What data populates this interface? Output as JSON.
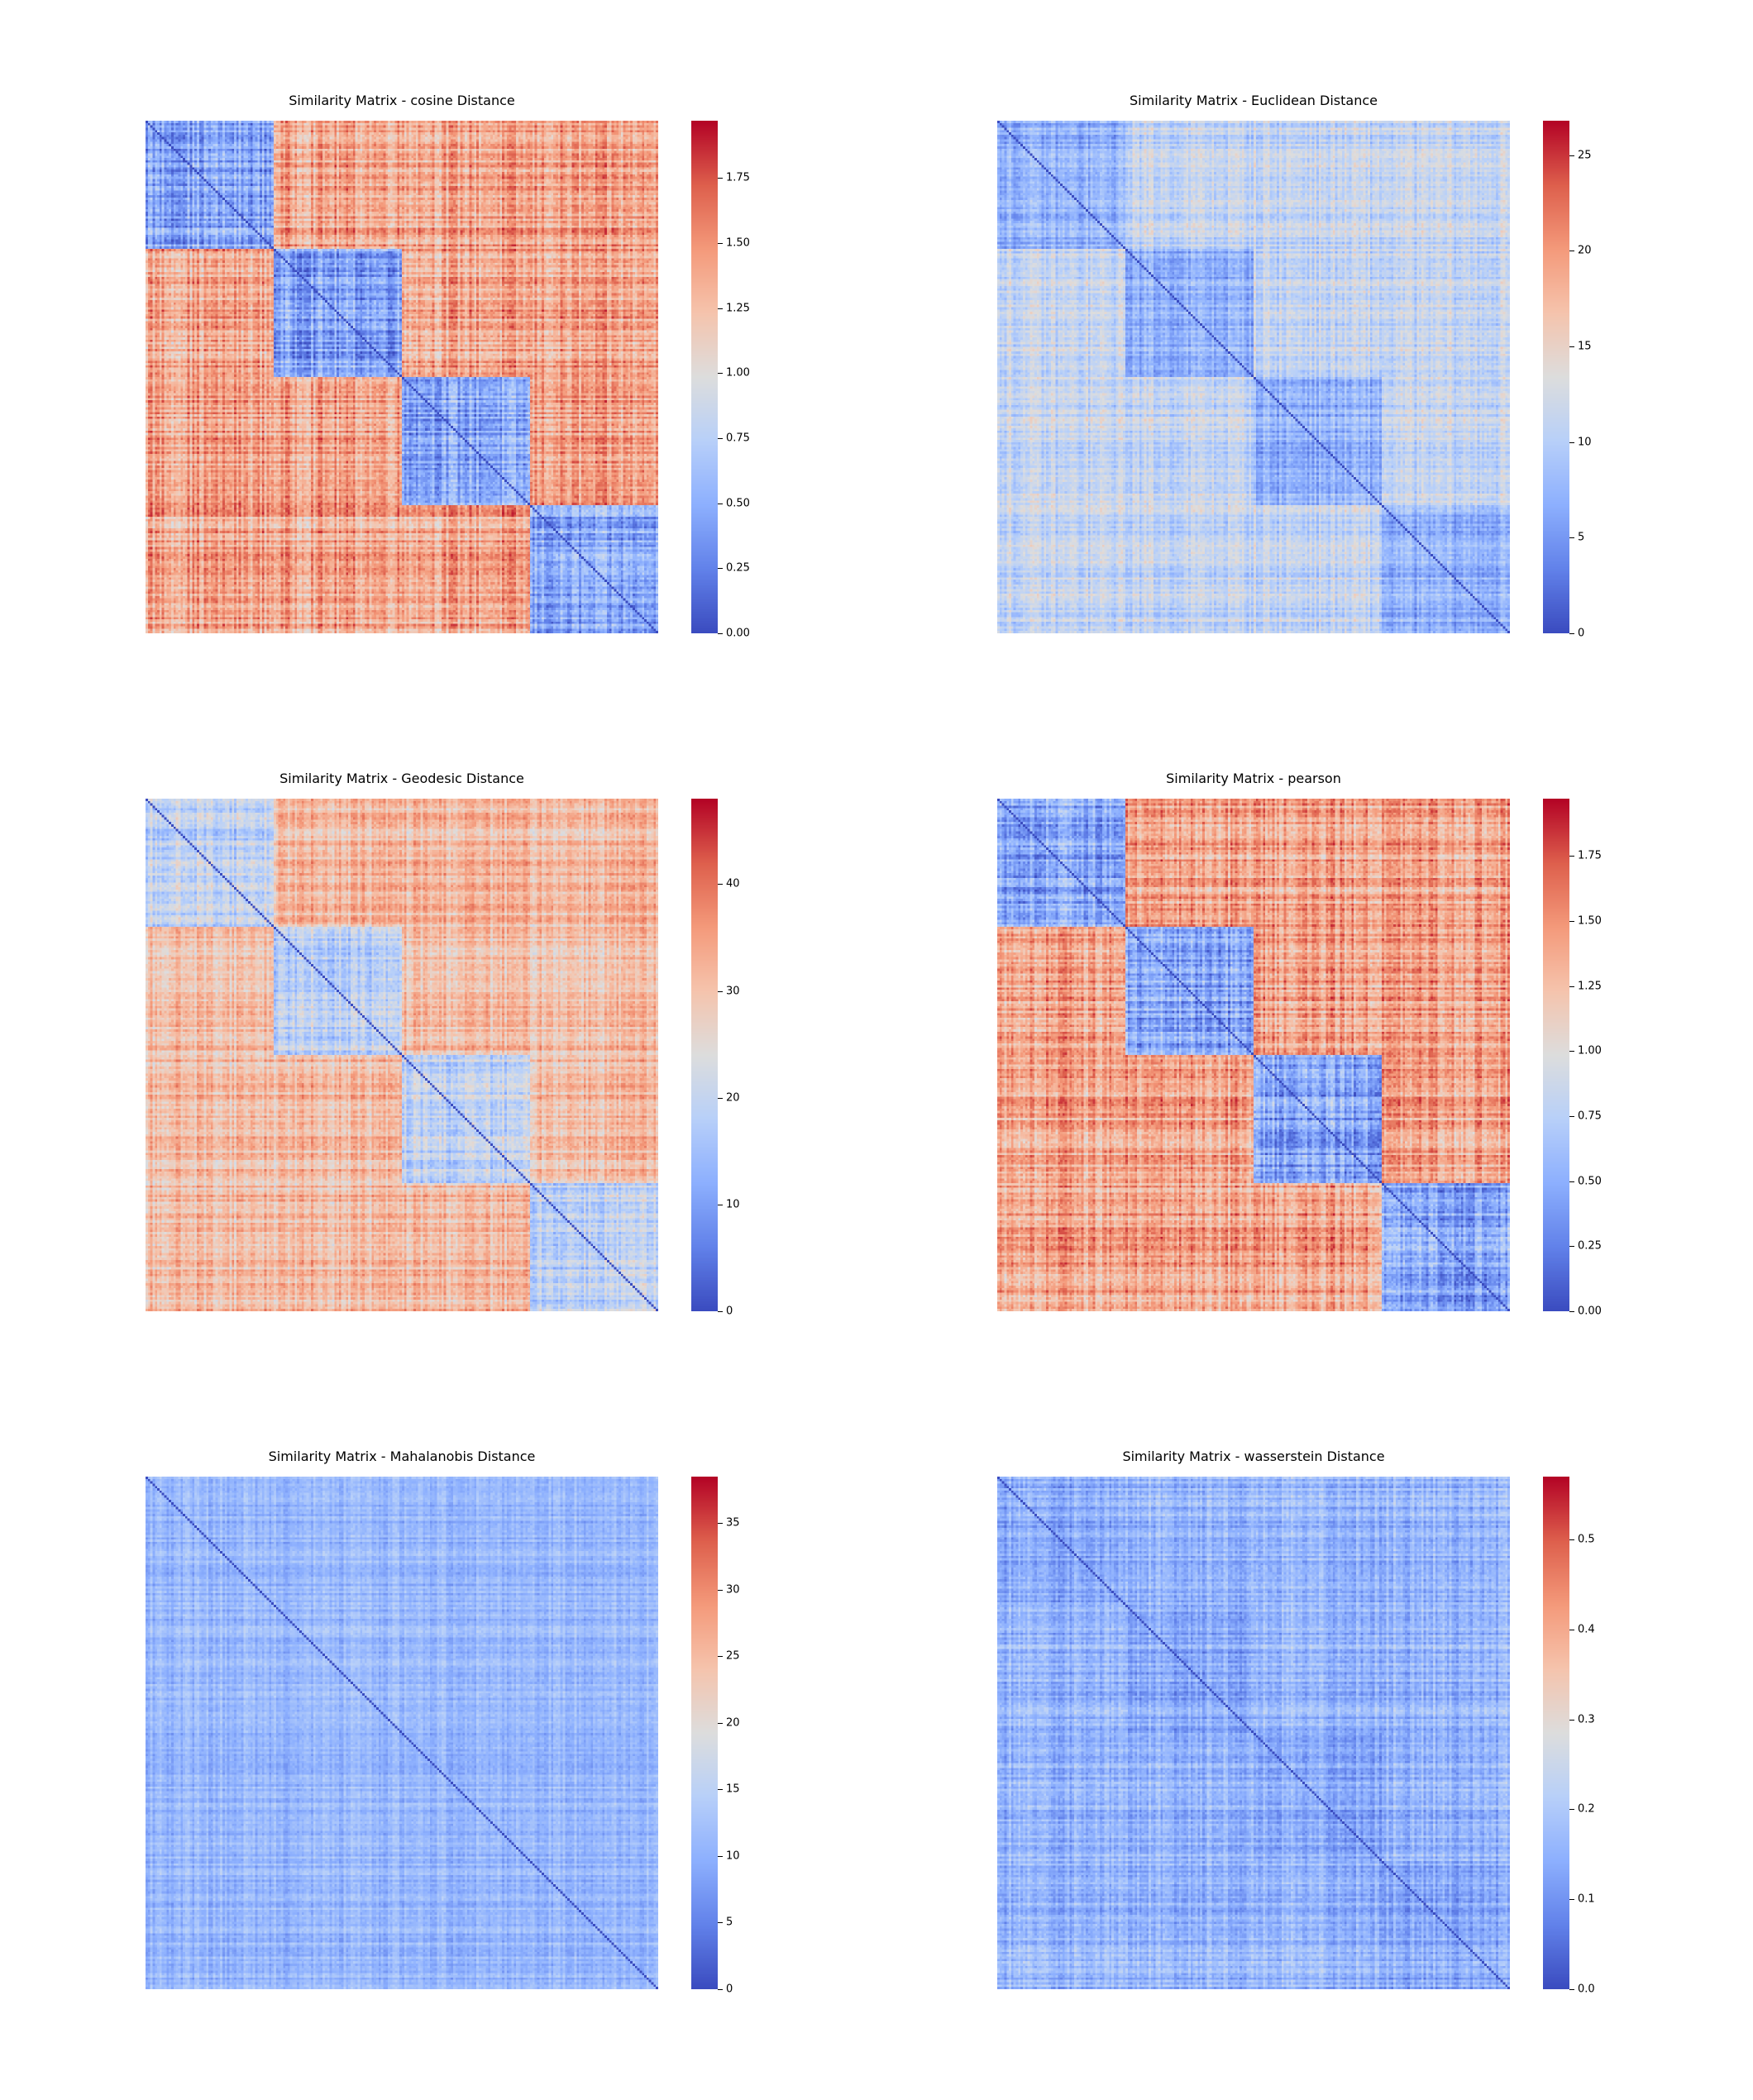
{
  "chart_data": [
    {
      "type": "heatmap",
      "title": "Similarity Matrix - cosine Distance",
      "colormap": "coolwarm",
      "vmin": 0.0,
      "vmax": 1.97,
      "colorbar_ticks": [
        "0.00",
        "0.25",
        "0.50",
        "0.75",
        "1.00",
        "1.25",
        "1.50",
        "1.75"
      ],
      "colorbar_tick_values": [
        0.0,
        0.25,
        0.5,
        0.75,
        1.0,
        1.25,
        1.5,
        1.75
      ],
      "blocks": [
        0.25,
        0.5,
        0.75,
        1.0
      ],
      "within_block_level": 0.45,
      "between_block_level": 1.4,
      "noise": 0.25,
      "xlabel": "",
      "ylabel": ""
    },
    {
      "type": "heatmap",
      "title": "Similarity Matrix - Euclidean Distance",
      "colormap": "coolwarm",
      "vmin": 0,
      "vmax": 26.8,
      "colorbar_ticks": [
        "0",
        "5",
        "10",
        "15",
        "20",
        "25"
      ],
      "colorbar_tick_values": [
        0,
        5,
        10,
        15,
        20,
        25
      ],
      "blocks": [
        0.25,
        0.5,
        0.75,
        1.0
      ],
      "within_block_level": 7,
      "between_block_level": 11,
      "noise": 2.5,
      "xlabel": "",
      "ylabel": ""
    },
    {
      "type": "heatmap",
      "title": "Similarity Matrix - Geodesic Distance",
      "colormap": "coolwarm",
      "vmin": 0,
      "vmax": 48,
      "colorbar_ticks": [
        "0",
        "10",
        "20",
        "30",
        "40"
      ],
      "colorbar_tick_values": [
        0,
        10,
        20,
        30,
        40
      ],
      "blocks": [
        0.25,
        0.5,
        0.75,
        1.0
      ],
      "within_block_level": 19,
      "between_block_level": 31,
      "noise": 5,
      "xlabel": "",
      "ylabel": ""
    },
    {
      "type": "heatmap",
      "title": "Similarity Matrix - pearson",
      "colormap": "coolwarm",
      "vmin": 0.0,
      "vmax": 1.97,
      "colorbar_ticks": [
        "0.00",
        "0.25",
        "0.50",
        "0.75",
        "1.00",
        "1.25",
        "1.50",
        "1.75"
      ],
      "colorbar_tick_values": [
        0.0,
        0.25,
        0.5,
        0.75,
        1.0,
        1.25,
        1.5,
        1.75
      ],
      "blocks": [
        0.25,
        0.5,
        0.75,
        1.0
      ],
      "within_block_level": 0.45,
      "between_block_level": 1.4,
      "noise": 0.25,
      "xlabel": "",
      "ylabel": ""
    },
    {
      "type": "heatmap",
      "title": "Similarity Matrix - Mahalanobis Distance",
      "colormap": "coolwarm",
      "vmin": 0,
      "vmax": 38.5,
      "colorbar_ticks": [
        "0",
        "5",
        "10",
        "15",
        "20",
        "25",
        "30",
        "35"
      ],
      "colorbar_tick_values": [
        0,
        5,
        10,
        15,
        20,
        25,
        30,
        35
      ],
      "blocks": [
        0.25,
        0.5,
        0.75,
        1.0
      ],
      "within_block_level": 11,
      "between_block_level": 11,
      "noise": 2.5,
      "xlabel": "",
      "ylabel": ""
    },
    {
      "type": "heatmap",
      "title": "Similarity Matrix - wasserstein Distance",
      "colormap": "coolwarm",
      "vmin": 0.0,
      "vmax": 0.57,
      "colorbar_ticks": [
        "0.0",
        "0.1",
        "0.2",
        "0.3",
        "0.4",
        "0.5"
      ],
      "colorbar_tick_values": [
        0.0,
        0.1,
        0.2,
        0.3,
        0.4,
        0.5
      ],
      "blocks": [
        0.25,
        0.5,
        0.75,
        1.0
      ],
      "within_block_level": 0.14,
      "between_block_level": 0.16,
      "noise": 0.05,
      "xlabel": "",
      "ylabel": ""
    }
  ]
}
